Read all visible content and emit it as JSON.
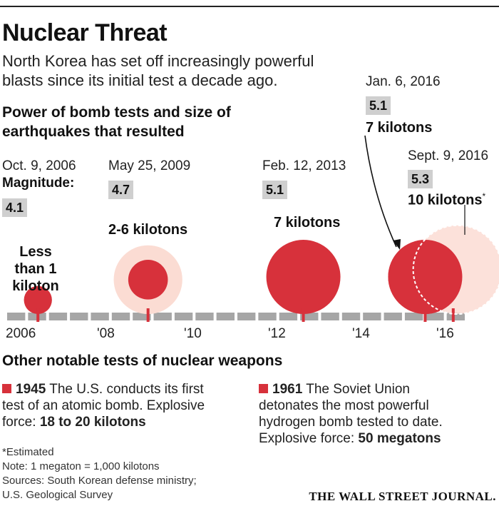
{
  "title": "Nuclear Threat",
  "subtitle": "North Korea has set off increasingly powerful blasts since its initial test a decade ago.",
  "section_heading": "Power of bomb tests and size of earthquakes that resulted",
  "magnitude_label": "Magnitude:",
  "chart_data": {
    "type": "bubble-timeline",
    "x_axis": {
      "ticks": [
        "2006",
        "'08",
        "'10",
        "'12",
        "'14",
        "'16"
      ],
      "range": [
        2006,
        2017
      ]
    },
    "events": [
      {
        "date": "Oct. 9, 2006",
        "year": 2006.77,
        "magnitude": "4.1",
        "kilotons_label": "Less than 1 kiloton",
        "kilotons_min": 0,
        "kilotons_max": 1
      },
      {
        "date": "May 25, 2009",
        "year": 2009.4,
        "magnitude": "4.7",
        "kilotons_label": "2-6 kilotons",
        "kilotons_min": 2,
        "kilotons_max": 6
      },
      {
        "date": "Feb. 12, 2013",
        "year": 2013.11,
        "magnitude": "5.1",
        "kilotons_label": "7 kilotons",
        "kilotons_min": 7,
        "kilotons_max": 7
      },
      {
        "date": "Jan. 6, 2016",
        "year": 2016.02,
        "magnitude": "5.1",
        "kilotons_label": "7 kilotons",
        "kilotons_min": 7,
        "kilotons_max": 7
      },
      {
        "date": "Sept. 9, 2016",
        "year": 2016.69,
        "magnitude": "5.3",
        "kilotons_label": "10 kilotons",
        "estimated_marker": "*",
        "kilotons_min": 10,
        "kilotons_max": 10
      }
    ],
    "colors": {
      "bomb": "#d7313b",
      "range": "#fbdcd3",
      "axis": "#a6a6a6",
      "magnitude_box": "#cfcfcf"
    }
  },
  "other_tests_heading": "Other notable tests of nuclear weapons",
  "other_tests": [
    {
      "year": "1945",
      "text": "The U.S. conducts its first test of an atomic bomb.",
      "force_label": "Explosive force:",
      "force_value": "18 to 20 kilotons"
    },
    {
      "year": "1961",
      "text": "The Soviet Union detonates the most powerful hydrogen bomb tested to date.",
      "force_label": "Explosive force:",
      "force_value": "50 megatons"
    }
  ],
  "footnotes": {
    "estimated": "*Estimated",
    "note": "Note: 1 megaton = 1,000 kilotons",
    "sources_line1": "Sources: South Korean defense ministry;",
    "sources_line2": "U.S. Geological Survey"
  },
  "publisher": "THE WALL STREET JOURNAL."
}
